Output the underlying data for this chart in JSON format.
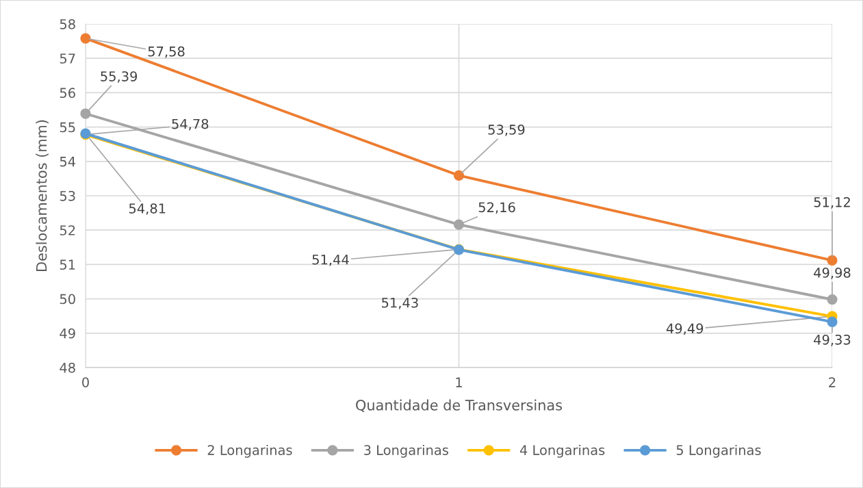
{
  "chart_data": {
    "type": "line",
    "xlabel": "Quantidade de Transversinas",
    "ylabel": "Deslocamentos (mm)",
    "x": [
      0,
      1,
      2
    ],
    "xlim": [
      0,
      2
    ],
    "xticks": [
      0,
      1,
      2
    ],
    "ylim": [
      48,
      58
    ],
    "yticks": [
      48,
      49,
      50,
      51,
      52,
      53,
      54,
      55,
      56,
      57,
      58
    ],
    "grid": true,
    "legend": "bottom",
    "marker": "circle",
    "line_style": "solid",
    "series": [
      {
        "name": "2 Longarinas",
        "color": "#ed7d31",
        "values": [
          57.58,
          53.59,
          51.12
        ],
        "value_labels": [
          "57,58",
          "53,59",
          "51,12"
        ]
      },
      {
        "name": "3 Longarinas",
        "color": "#a5a5a5",
        "values": [
          55.39,
          52.16,
          49.98
        ],
        "value_labels": [
          "55,39",
          "52,16",
          "49,98"
        ]
      },
      {
        "name": "4 Longarinas",
        "color": "#ffc000",
        "values": [
          54.78,
          51.44,
          49.49
        ],
        "value_labels": [
          "54,78",
          "51,44",
          "49,49"
        ]
      },
      {
        "name": "5 Longarinas",
        "color": "#5b9bd5",
        "values": [
          54.81,
          51.43,
          49.33
        ],
        "value_labels": [
          "54,81",
          "51,43",
          "49,33"
        ]
      }
    ]
  }
}
